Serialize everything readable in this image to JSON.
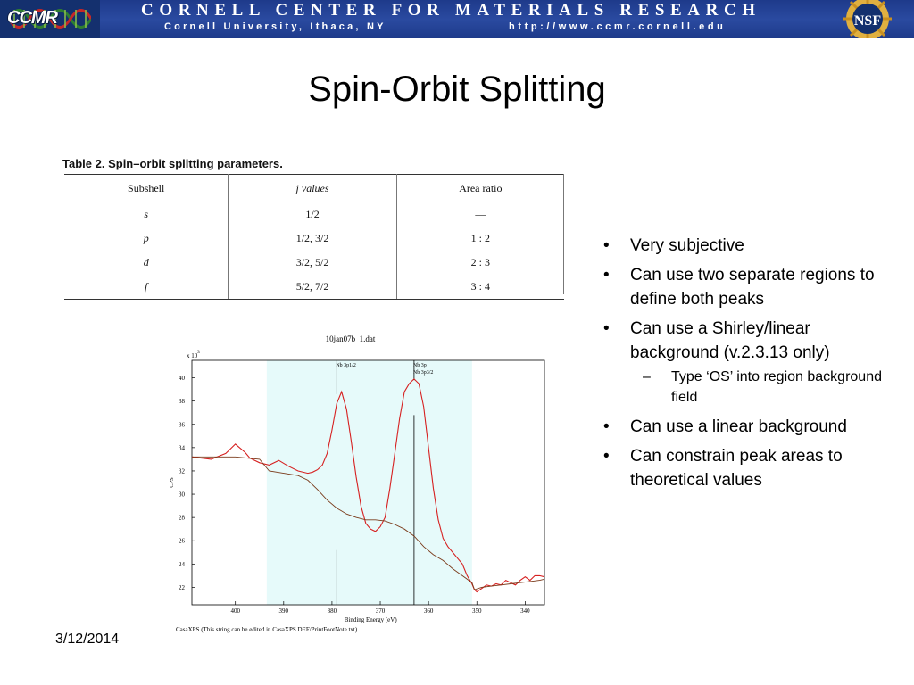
{
  "header": {
    "logo_text": "CCMR",
    "title": "Cornell Center for Materials Research",
    "subtitle": "Cornell University, Ithaca, NY",
    "url": "http://www.ccmr.cornell.edu",
    "nsf_text": "NSF",
    "colors": {
      "banner": "#1e3a8a",
      "accent": "#ffffff"
    }
  },
  "slide": {
    "title": "Spin-Orbit Splitting",
    "date": "3/12/2014"
  },
  "table": {
    "caption_label": "Table 2.",
    "caption_text": "Spin–orbit splitting parameters.",
    "headers": [
      "Subshell",
      "j values",
      "Area ratio"
    ],
    "rows": [
      [
        "s",
        "1/2",
        "—"
      ],
      [
        "p",
        "1/2, 3/2",
        "1 : 2"
      ],
      [
        "d",
        "3/2, 5/2",
        "2 : 3"
      ],
      [
        "f",
        "5/2, 7/2",
        "3 : 4"
      ]
    ]
  },
  "bullets": {
    "items": [
      "Very subjective",
      "Can use two separate regions to define both peaks",
      "Can use a Shirley/linear background (v.2.3.13 only)",
      "Can use a linear background",
      "Can constrain peak areas to theoretical values"
    ],
    "subitem": "Type ‘OS’ into region background field",
    "bullet_char": "•",
    "dash_char": "–"
  },
  "chart_data": {
    "type": "line",
    "title": "10jan07b_1.dat",
    "xlabel": "Binding Energy (eV)",
    "ylabel": "CPS",
    "y_multiplier": "x 10",
    "y_exponent": "3",
    "footnote": "CasaXPS (This string can be edited in CasaXPS.DEF/PrintFootNote.txt)",
    "xlim": [
      409,
      336
    ],
    "ylim": [
      20.5,
      41.5
    ],
    "x_ticks": [
      400,
      390,
      380,
      370,
      360,
      350,
      340
    ],
    "y_ticks": [
      22,
      24,
      26,
      28,
      30,
      32,
      34,
      36,
      38,
      40
    ],
    "region": [
      393.5,
      351
    ],
    "peak_markers": [
      {
        "x": 379,
        "label": "Nb 3p1/2"
      },
      {
        "x": 363,
        "label": "Nb 3p"
      },
      {
        "x": 363,
        "label": "Nb 3p3/2"
      }
    ],
    "series": [
      {
        "color": "#d62020",
        "x": [
          409,
          405,
          402,
          400,
          398,
          397,
          395,
          393,
          391,
          389,
          387,
          385,
          384,
          383,
          382,
          381,
          380,
          379,
          378,
          377,
          376,
          375,
          374,
          373,
          372,
          371,
          370,
          369,
          368,
          367,
          366,
          365,
          364,
          363,
          362,
          361,
          360,
          359,
          358,
          357,
          356,
          355,
          354,
          353,
          352,
          351,
          350.5,
          350,
          349,
          348,
          347,
          346,
          345,
          344,
          343,
          342,
          341,
          340,
          339,
          338,
          337,
          336
        ],
        "values": [
          33.2,
          33.0,
          33.5,
          34.3,
          33.6,
          33.1,
          32.7,
          32.5,
          32.9,
          32.4,
          32.0,
          31.8,
          31.9,
          32.1,
          32.5,
          33.5,
          35.5,
          37.8,
          38.8,
          37.3,
          34.5,
          31.5,
          29.0,
          27.5,
          27.0,
          26.8,
          27.2,
          28.0,
          30.5,
          33.5,
          36.5,
          38.8,
          39.5,
          39.9,
          39.5,
          37.5,
          34.0,
          30.5,
          27.8,
          26.2,
          25.5,
          25.0,
          24.5,
          24.0,
          23.0,
          22.3,
          21.8,
          21.6,
          21.9,
          22.2,
          22.1,
          22.3,
          22.2,
          22.6,
          22.4,
          22.2,
          22.6,
          22.9,
          22.6,
          23.0,
          23.0,
          22.9
        ]
      },
      {
        "color": "#7a3a1a",
        "x": [
          409,
          400,
          395,
          393,
          390,
          387,
          385,
          383,
          381,
          379,
          377,
          375,
          373,
          371,
          369,
          367,
          365,
          363,
          361,
          359,
          357,
          355,
          353,
          351,
          350.5,
          349,
          347,
          345,
          343,
          341,
          339,
          337,
          336
        ],
        "values": [
          33.2,
          33.2,
          33.0,
          32.0,
          31.8,
          31.6,
          31.2,
          30.4,
          29.5,
          28.8,
          28.3,
          28.0,
          27.8,
          27.8,
          27.7,
          27.4,
          27.0,
          26.4,
          25.5,
          24.8,
          24.3,
          23.6,
          23.0,
          22.4,
          21.8,
          22.0,
          22.1,
          22.2,
          22.3,
          22.4,
          22.5,
          22.6,
          22.7
        ]
      }
    ]
  }
}
